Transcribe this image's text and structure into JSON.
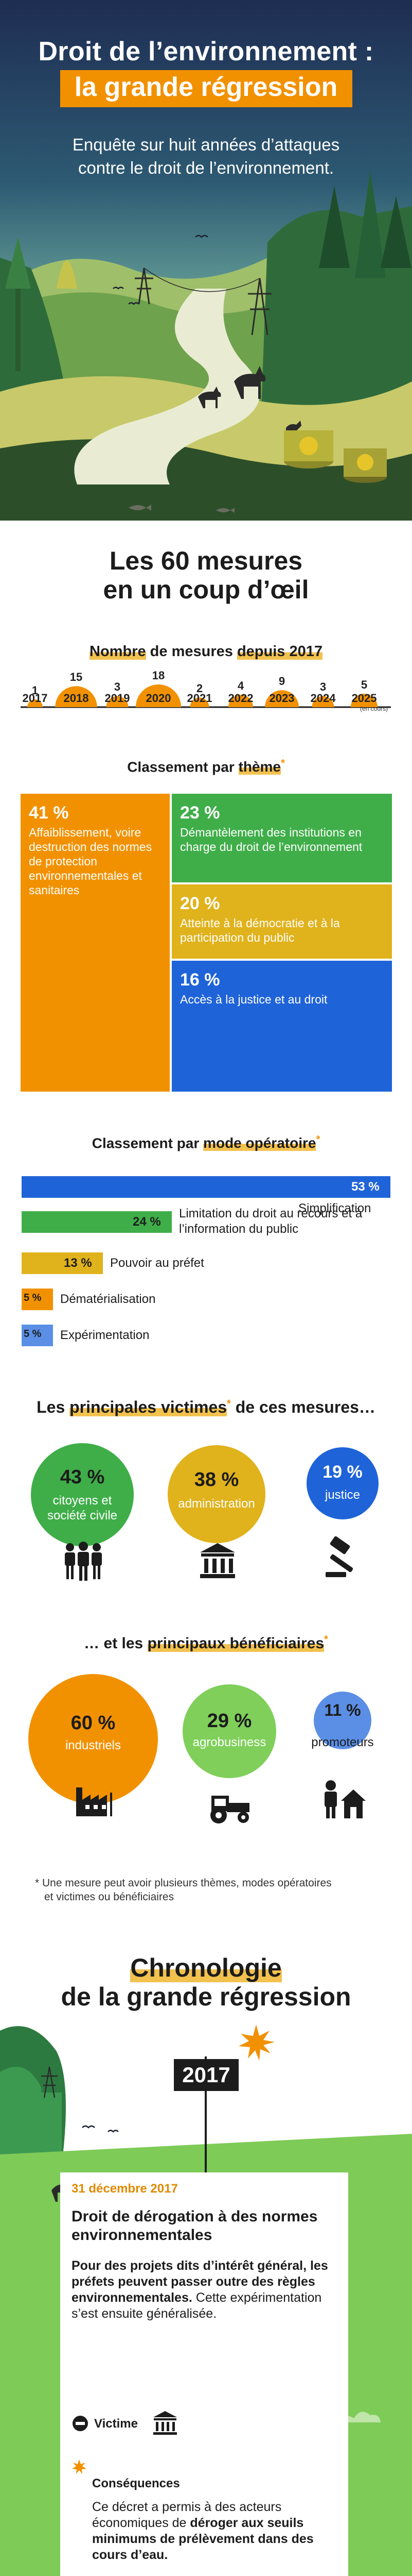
{
  "hero": {
    "title_line1": "Droit de l’environnement :",
    "title_line2": "la grande régression",
    "subtitle_line1": "Enquête sur huit années d’attaques",
    "subtitle_line2": "contre le droit de l’environnement."
  },
  "overview": {
    "title_line1": "Les 60 mesures",
    "title_line2": "en un coup d’œil"
  },
  "per_year": {
    "title_pre": "Nombre",
    "title_mid": " de mesures ",
    "title_hl": "depuis 2017",
    "note": "(en cours)",
    "items": [
      {
        "year": "2017",
        "count": "1"
      },
      {
        "year": "2018",
        "count": "15"
      },
      {
        "year": "2019",
        "count": "3"
      },
      {
        "year": "2020",
        "count": "18"
      },
      {
        "year": "2021",
        "count": "2"
      },
      {
        "year": "2022",
        "count": "4"
      },
      {
        "year": "2023",
        "count": "9"
      },
      {
        "year": "2024",
        "count": "3"
      },
      {
        "year": "2025",
        "count": "5"
      }
    ],
    "values": [
      1,
      15,
      3,
      18,
      2,
      4,
      9,
      3,
      5
    ]
  },
  "theme": {
    "title_pre": "Classement par ",
    "title_hl": "thème",
    "star": "*",
    "items": [
      {
        "pct": "41 %",
        "label": "Affaiblissement, voire destruction des normes de protection environnementales et sanitaires",
        "color": "#f29100"
      },
      {
        "pct": "23 %",
        "label": "Démantèlement des institutions en charge du droit de l’environnement",
        "color": "#3fae49"
      },
      {
        "pct": "20 %",
        "label": "Atteinte à la démocratie et à la participation du public",
        "color": "#e0b21c"
      },
      {
        "pct": "16 %",
        "label": "Accès à la justice et au droit",
        "color": "#1f63d8"
      }
    ]
  },
  "mode": {
    "title_pre": "Classement par ",
    "title_hl": "mode opératoire",
    "star": "*",
    "items": [
      {
        "pct": "53 %",
        "label": "Simplification",
        "value": 53,
        "color": "#1f63d8"
      },
      {
        "pct": "24 %",
        "label": "Limitation du droit au recours et à l’information du public",
        "value": 24,
        "color": "#3fae49"
      },
      {
        "pct": "13 %",
        "label": "Pouvoir au préfet",
        "value": 13,
        "color": "#e0b21c"
      },
      {
        "pct": "5 %",
        "label": "Dématérialisation",
        "value": 5,
        "color": "#f29100"
      },
      {
        "pct": "5 %",
        "label": "Expérimentation",
        "value": 5,
        "color": "#5b8fe6"
      }
    ]
  },
  "victims": {
    "title_pre": "Les ",
    "title_hl": "principales victimes",
    "star": "*",
    "title_post": " de ces mesures…",
    "items": [
      {
        "pct": "43 %",
        "label_line1": "citoyens et",
        "label_line2": "société civile",
        "icon": "people-icon",
        "color": "#3fae49",
        "value": 43
      },
      {
        "pct": "38 %",
        "label_line1": "administration",
        "label_line2": "",
        "icon": "institution-icon",
        "color": "#e0b21c",
        "value": 38
      },
      {
        "pct": "19 %",
        "label_line1": "justice",
        "label_line2": "",
        "icon": "gavel-icon",
        "color": "#1f63d8",
        "value": 19
      }
    ]
  },
  "beneficiaries": {
    "title_pre": "… et les ",
    "title_hl": "principaux bénéficiaires",
    "star": "*",
    "items": [
      {
        "pct": "60 %",
        "label": "industriels",
        "icon": "factory-icon",
        "color": "#f29100",
        "value": 60
      },
      {
        "pct": "29 %",
        "label": "agrobusiness",
        "icon": "tractor-icon",
        "color": "#7fcf5a",
        "value": 29
      },
      {
        "pct": "11 %",
        "label": "promoteurs",
        "icon": "house-builder-icon",
        "color": "#5b8fe6",
        "value": 11
      }
    ]
  },
  "footnote": {
    "line1": "* Une mesure peut avoir plusieurs thèmes, modes opératoires",
    "line2": "et victimes ou bénéficiaires"
  },
  "chronology": {
    "title_line1": "Chronologie",
    "title_line2": "de la grande régression",
    "year_badge": "2017"
  },
  "entry": {
    "date": "31 décembre 2017",
    "heading": "Droit de dérogation à des normes environnementales",
    "body_bold": "Pour des projets dits d’intérêt général, les préfets peuvent passer outre des règles environnementales.",
    "body_regular": " Cette expérimentation s’est ensuite généralisée.",
    "victim_label": "Victime",
    "victim_icon": "institution-icon",
    "consequences_label": "Conséquences",
    "consequences_pre": "Ce décret a permis à des acteurs économiques de ",
    "consequences_bold": "déroger aux seuils minimums de prélèvement dans des cours d’eau."
  }
}
